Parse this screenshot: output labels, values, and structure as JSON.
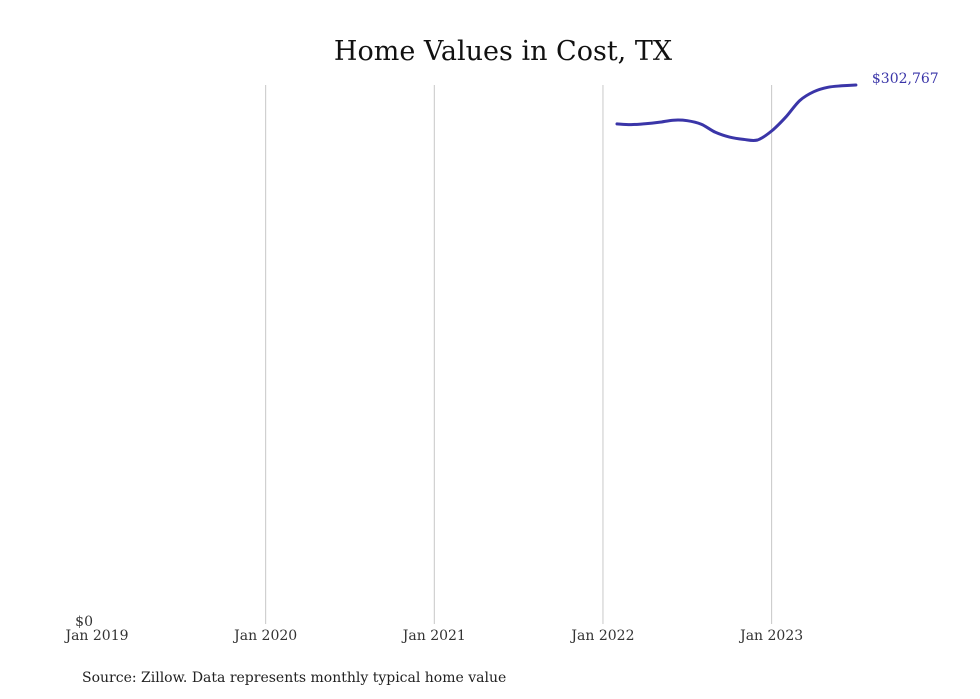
{
  "chart_data": {
    "type": "line",
    "title": "Home Values in Cost, TX",
    "xlabel": "",
    "ylabel": "",
    "x_ticks": [
      "Jan 2019",
      "Jan 2020",
      "Jan 2021",
      "Jan 2022",
      "Jan 2023"
    ],
    "y_ticks": [
      "$0"
    ],
    "ylim": [
      0,
      302767
    ],
    "xlim": [
      "2019-01",
      "2023-08"
    ],
    "grid": "vertical",
    "legend": "none",
    "end_label": "$302,767",
    "series": [
      {
        "color": "#3a35a8",
        "x": [
          "2022-02",
          "2022-03",
          "2022-04",
          "2022-05",
          "2022-06",
          "2022-07",
          "2022-08",
          "2022-09",
          "2022-10",
          "2022-11",
          "2022-12",
          "2023-01",
          "2023-02",
          "2023-03",
          "2023-04",
          "2023-05",
          "2023-06",
          "2023-07"
        ],
        "values": [
          280900,
          280500,
          281000,
          281800,
          283000,
          282700,
          280700,
          276200,
          273500,
          272200,
          271900,
          276900,
          284700,
          294000,
          299000,
          301500,
          302300,
          302767
        ]
      }
    ]
  },
  "source_note": "Source: Zillow. Data represents monthly typical home value"
}
